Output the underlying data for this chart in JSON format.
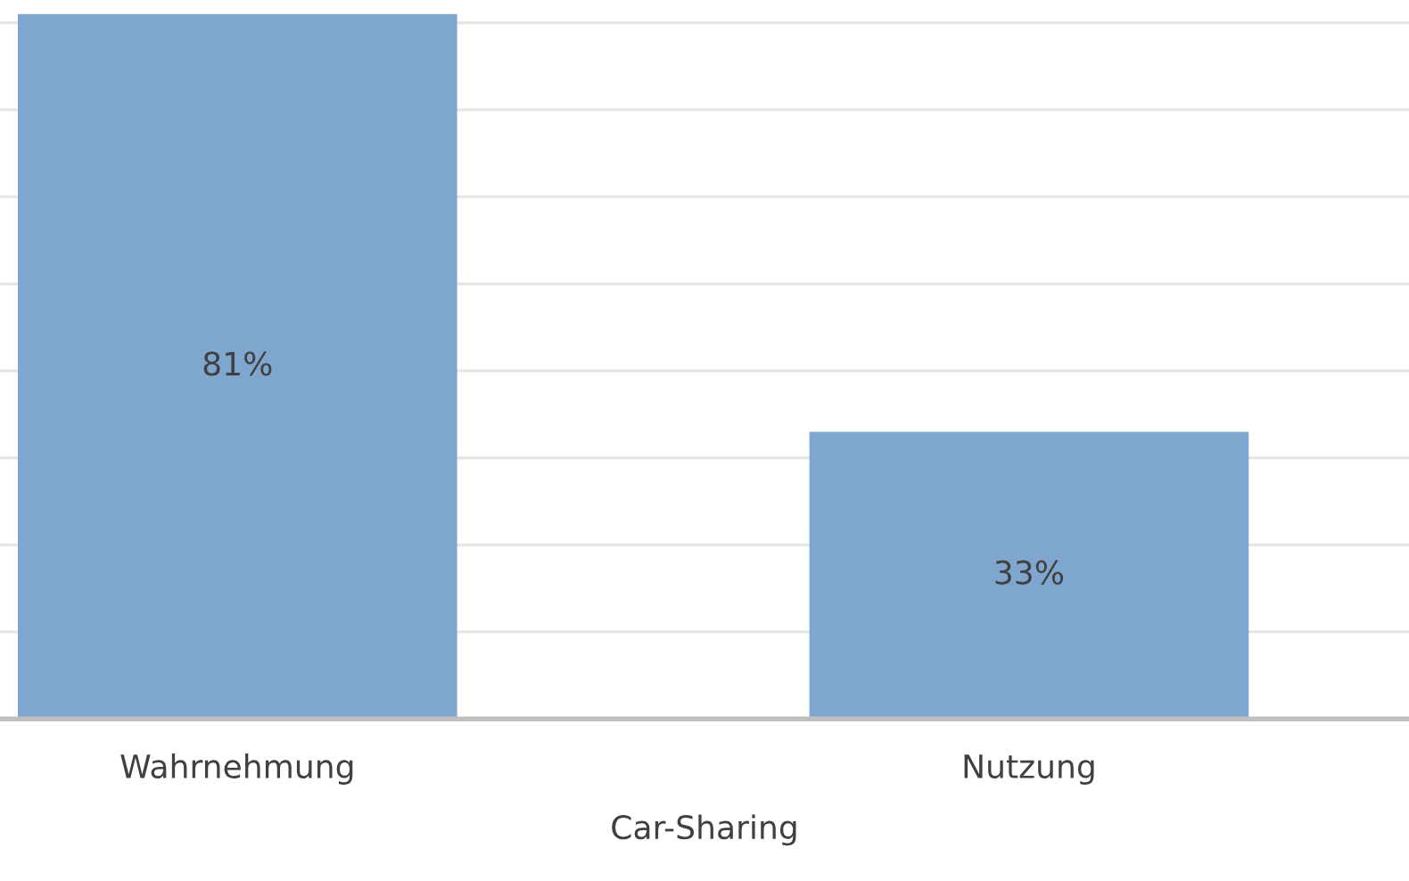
{
  "chart_data": {
    "type": "bar",
    "xlabel": "Car-Sharing",
    "categories": [
      "Wahrnehmung",
      "Nutzung"
    ],
    "series": [
      {
        "color": "#7fa6cf",
        "values": [
          81,
          33
        ],
        "value_labels": [
          "81%",
          "33%"
        ]
      }
    ],
    "yticks": [
      {
        "value": 0,
        "label": null
      },
      {
        "value": 10,
        "label": null
      },
      {
        "value": 20,
        "label": null
      },
      {
        "value": 30,
        "label": null
      },
      {
        "value": 40,
        "label": null
      },
      {
        "value": 50,
        "label": null
      },
      {
        "value": 60,
        "label": null
      },
      {
        "value": 70,
        "label": null
      },
      {
        "value": 80,
        "label": null
      }
    ],
    "grid": "y",
    "tick_labels": "x",
    "legend": false
  }
}
